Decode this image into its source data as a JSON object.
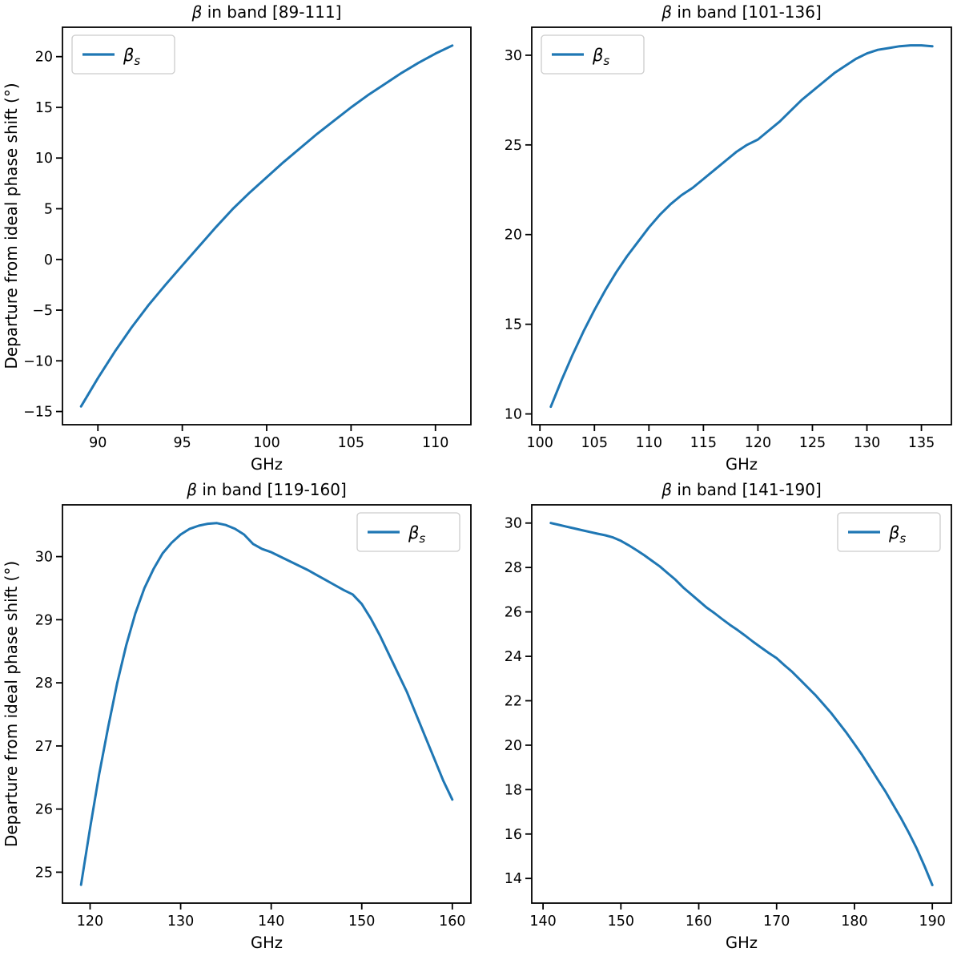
{
  "figure": {
    "background": "#ffffff",
    "line_color": "#1f77b4",
    "text_color": "#000000",
    "legend_edge_color": "#cccccc"
  },
  "chart_data": [
    {
      "type": "line",
      "title": {
        "math": "β",
        "text": " in band [89-111]"
      },
      "xlabel": "GHz",
      "ylabel": "Departure from ideal phase shift (°)",
      "xlim": [
        87.9,
        112.1
      ],
      "ylim": [
        -16.3,
        22.9
      ],
      "xticks": [
        90,
        95,
        100,
        105,
        110
      ],
      "yticks": [
        -15,
        -10,
        -5,
        0,
        5,
        10,
        15,
        20
      ],
      "grid": false,
      "legend_position": "upper-left",
      "legend_label": {
        "base": "β",
        "sub": "s"
      },
      "series": [
        {
          "name": "beta_s",
          "color": "#1f77b4",
          "x": [
            89,
            90,
            91,
            92,
            93,
            94,
            95,
            96,
            97,
            98,
            99,
            100,
            101,
            102,
            103,
            104,
            105,
            106,
            107,
            108,
            109,
            110,
            111
          ],
          "y": [
            -14.5,
            -11.7,
            -9.1,
            -6.7,
            -4.5,
            -2.5,
            -0.6,
            1.3,
            3.2,
            5.0,
            6.6,
            8.1,
            9.6,
            11.0,
            12.4,
            13.7,
            15.0,
            16.2,
            17.3,
            18.4,
            19.4,
            20.3,
            21.1
          ]
        }
      ]
    },
    {
      "type": "line",
      "title": {
        "math": "β",
        "text": " in band [101-136]"
      },
      "xlabel": "GHz",
      "ylabel": "",
      "xlim": [
        99.25,
        137.75
      ],
      "ylim": [
        9.4,
        31.56
      ],
      "xticks": [
        100,
        105,
        110,
        115,
        120,
        125,
        130,
        135
      ],
      "yticks": [
        10,
        15,
        20,
        25,
        30
      ],
      "grid": false,
      "legend_position": "upper-left",
      "legend_label": {
        "base": "β",
        "sub": "s"
      },
      "series": [
        {
          "name": "beta_s",
          "color": "#1f77b4",
          "x": [
            101,
            102,
            103,
            104,
            105,
            106,
            107,
            108,
            109,
            110,
            111,
            112,
            113,
            114,
            115,
            116,
            117,
            118,
            119,
            120,
            121,
            122,
            123,
            124,
            125,
            126,
            127,
            128,
            129,
            130,
            131,
            132,
            133,
            134,
            135,
            136
          ],
          "y": [
            10.4,
            11.9,
            13.3,
            14.6,
            15.8,
            16.9,
            17.9,
            18.8,
            19.6,
            20.4,
            21.1,
            21.7,
            22.2,
            22.6,
            23.1,
            23.6,
            24.1,
            24.6,
            25.0,
            25.3,
            25.8,
            26.3,
            26.9,
            27.5,
            28.0,
            28.5,
            29.0,
            29.4,
            29.8,
            30.1,
            30.3,
            30.4,
            30.5,
            30.55,
            30.55,
            30.5
          ]
        }
      ]
    },
    {
      "type": "line",
      "title": {
        "math": "β",
        "text": " in band [119-160]"
      },
      "xlabel": "GHz",
      "ylabel": "Departure from ideal phase shift (°)",
      "xlim": [
        116.95,
        162.05
      ],
      "ylim": [
        24.51,
        30.82
      ],
      "xticks": [
        120,
        130,
        140,
        150,
        160
      ],
      "yticks": [
        25,
        26,
        27,
        28,
        29,
        30
      ],
      "grid": false,
      "legend_position": "upper-right",
      "legend_label": {
        "base": "β",
        "sub": "s"
      },
      "series": [
        {
          "name": "beta_s",
          "color": "#1f77b4",
          "x": [
            119,
            120,
            121,
            122,
            123,
            124,
            125,
            126,
            127,
            128,
            129,
            130,
            131,
            132,
            133,
            134,
            135,
            136,
            137,
            138,
            139,
            140,
            141,
            142,
            143,
            144,
            145,
            146,
            147,
            148,
            149,
            150,
            151,
            152,
            153,
            154,
            155,
            156,
            157,
            158,
            159,
            160
          ],
          "y": [
            24.8,
            25.7,
            26.55,
            27.3,
            28.0,
            28.6,
            29.1,
            29.5,
            29.8,
            30.05,
            30.22,
            30.35,
            30.44,
            30.49,
            30.52,
            30.53,
            30.5,
            30.44,
            30.35,
            30.2,
            30.12,
            30.07,
            30.0,
            29.93,
            29.86,
            29.79,
            29.71,
            29.63,
            29.55,
            29.47,
            29.4,
            29.25,
            29.02,
            28.75,
            28.45,
            28.15,
            27.85,
            27.5,
            27.15,
            26.8,
            26.45,
            26.15
          ]
        }
      ]
    },
    {
      "type": "line",
      "title": {
        "math": "β",
        "text": " in band [141-190]"
      },
      "xlabel": "GHz",
      "ylabel": "",
      "xlim": [
        138.55,
        192.45
      ],
      "ylim": [
        12.89,
        30.82
      ],
      "xticks": [
        140,
        150,
        160,
        170,
        180,
        190
      ],
      "yticks": [
        14,
        16,
        18,
        20,
        22,
        24,
        26,
        28,
        30
      ],
      "grid": false,
      "legend_position": "upper-right",
      "legend_label": {
        "base": "β",
        "sub": "s"
      },
      "series": [
        {
          "name": "beta_s",
          "color": "#1f77b4",
          "x": [
            141,
            142,
            143,
            144,
            145,
            146,
            147,
            148,
            149,
            150,
            151,
            152,
            153,
            154,
            155,
            156,
            157,
            158,
            159,
            160,
            161,
            162,
            163,
            164,
            165,
            166,
            167,
            168,
            169,
            170,
            171,
            172,
            173,
            174,
            175,
            176,
            177,
            178,
            179,
            180,
            181,
            182,
            183,
            184,
            185,
            186,
            187,
            188,
            189,
            190
          ],
          "y": [
            30.0,
            29.92,
            29.84,
            29.76,
            29.68,
            29.6,
            29.52,
            29.45,
            29.35,
            29.2,
            29.0,
            28.78,
            28.55,
            28.3,
            28.05,
            27.75,
            27.45,
            27.1,
            26.8,
            26.5,
            26.2,
            25.95,
            25.68,
            25.42,
            25.18,
            24.92,
            24.65,
            24.4,
            24.15,
            23.92,
            23.6,
            23.3,
            22.95,
            22.6,
            22.25,
            21.85,
            21.45,
            21.0,
            20.55,
            20.05,
            19.55,
            19.0,
            18.45,
            17.9,
            17.3,
            16.7,
            16.05,
            15.35,
            14.55,
            13.7
          ]
        }
      ]
    }
  ]
}
